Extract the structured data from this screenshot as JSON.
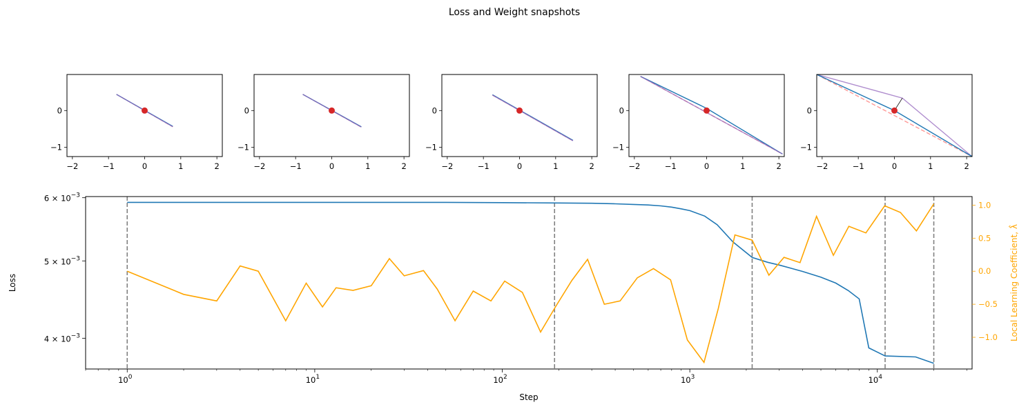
{
  "figure": {
    "suptitle": "Loss and Weight snapshots"
  },
  "colors": {
    "loss": "#1f77b4",
    "llc": "#ffa500",
    "marker": "#d62728",
    "vline": "#808080",
    "snapshot_red": "#ff9896",
    "snapshot_blue": "#1f77b4",
    "snapshot_purple": "#9467bd"
  },
  "chart_data": [
    {
      "type": "scatter",
      "name": "snapshot-1",
      "xlim": [
        -2.15,
        2.15
      ],
      "ylim": [
        -1.25,
        0.98
      ],
      "xticks": [
        -2,
        -1,
        0,
        1,
        2
      ],
      "xtick_labels": [
        "−2",
        "−1",
        "0",
        "1",
        "2"
      ],
      "yticks": [
        0,
        -1
      ],
      "ytick_labels": [
        "0",
        "−1"
      ],
      "lines": [
        {
          "color": "red",
          "dash": true,
          "points": [
            [
              -0.78,
              0.44
            ],
            [
              0.78,
              -0.44
            ]
          ]
        },
        {
          "color": "blue",
          "points": [
            [
              -0.78,
              0.44
            ],
            [
              0.78,
              -0.43
            ]
          ]
        },
        {
          "color": "purple",
          "points": [
            [
              -0.78,
              0.44
            ],
            [
              0.78,
              -0.44
            ]
          ]
        }
      ],
      "point": [
        0,
        0
      ]
    },
    {
      "type": "scatter",
      "name": "snapshot-2",
      "xlim": [
        -2.15,
        2.15
      ],
      "ylim": [
        -1.25,
        0.98
      ],
      "xticks": [
        -2,
        -1,
        0,
        1,
        2
      ],
      "xtick_labels": [
        "−2",
        "−1",
        "0",
        "1",
        "2"
      ],
      "yticks": [
        0,
        -1
      ],
      "ytick_labels": [
        "0",
        "−1"
      ],
      "lines": [
        {
          "color": "red",
          "dash": true,
          "points": [
            [
              -0.8,
              0.44
            ],
            [
              0.82,
              -0.45
            ]
          ]
        },
        {
          "color": "blue",
          "points": [
            [
              -0.8,
              0.44
            ],
            [
              0.82,
              -0.44
            ]
          ]
        },
        {
          "color": "purple",
          "points": [
            [
              -0.8,
              0.44
            ],
            [
              0.82,
              -0.45
            ]
          ]
        }
      ],
      "point": [
        0,
        0
      ]
    },
    {
      "type": "scatter",
      "name": "snapshot-3",
      "xlim": [
        -2.15,
        2.15
      ],
      "ylim": [
        -1.25,
        0.98
      ],
      "xticks": [
        -2,
        -1,
        0,
        1,
        2
      ],
      "xtick_labels": [
        "−2",
        "−1",
        "0",
        "1",
        "2"
      ],
      "yticks": [
        0,
        -1
      ],
      "ytick_labels": [
        "0",
        "−1"
      ],
      "lines": [
        {
          "color": "red",
          "dash": true,
          "points": [
            [
              -0.75,
              0.42
            ],
            [
              1.48,
              -0.82
            ]
          ]
        },
        {
          "color": "blue",
          "points": [
            [
              -0.75,
              0.43
            ],
            [
              1.48,
              -0.81
            ]
          ]
        },
        {
          "color": "purple",
          "points": [
            [
              -0.75,
              0.42
            ],
            [
              1.48,
              -0.82
            ]
          ]
        }
      ],
      "point": [
        0,
        0
      ]
    },
    {
      "type": "scatter",
      "name": "snapshot-4",
      "xlim": [
        -2.15,
        2.15
      ],
      "ylim": [
        -1.25,
        0.98
      ],
      "xticks": [
        -2,
        -1,
        0,
        1,
        2
      ],
      "xtick_labels": [
        "−2",
        "−1",
        "0",
        "1",
        "2"
      ],
      "yticks": [
        0,
        -1
      ],
      "ytick_labels": [
        "0",
        "−1"
      ],
      "lines": [
        {
          "color": "red",
          "dash": true,
          "points": [
            [
              -1.83,
              0.93
            ],
            [
              2.1,
              -1.18
            ]
          ]
        },
        {
          "color": "blue",
          "points": [
            [
              -1.83,
              0.93
            ],
            [
              0.0,
              0.06
            ],
            [
              2.1,
              -1.18
            ]
          ]
        },
        {
          "color": "purple",
          "points": [
            [
              -1.83,
              0.93
            ],
            [
              2.1,
              -1.18
            ]
          ]
        },
        {
          "color": "black",
          "points": [
            [
              0.0,
              0.0
            ],
            [
              0.0,
              0.06
            ]
          ]
        }
      ],
      "point": [
        0,
        0
      ]
    },
    {
      "type": "scatter",
      "name": "snapshot-5",
      "xlim": [
        -2.15,
        2.15
      ],
      "ylim": [
        -1.25,
        0.98
      ],
      "xticks": [
        -2,
        -1,
        0,
        1,
        2
      ],
      "xtick_labels": [
        "−2",
        "−1",
        "0",
        "1",
        "2"
      ],
      "yticks": [
        0,
        -1
      ],
      "ytick_labels": [
        "0",
        "−1"
      ],
      "lines": [
        {
          "color": "red",
          "dash": true,
          "points": [
            [
              -2.15,
              0.98
            ],
            [
              2.15,
              -1.25
            ]
          ]
        },
        {
          "color": "purple",
          "points": [
            [
              -2.15,
              0.98
            ],
            [
              0.22,
              0.34
            ],
            [
              2.15,
              -1.25
            ]
          ]
        },
        {
          "color": "blue",
          "points": [
            [
              -2.15,
              0.98
            ],
            [
              0.0,
              0.0
            ],
            [
              2.15,
              -1.25
            ]
          ]
        },
        {
          "color": "black",
          "points": [
            [
              0.0,
              0.0
            ],
            [
              0.22,
              0.34
            ]
          ]
        }
      ],
      "point": [
        0,
        0
      ]
    },
    {
      "type": "line",
      "name": "loss-llc",
      "xlabel": "Step",
      "ylabel_left": "Loss",
      "ylabel_right": "Local Learning Coefficient, λ̂",
      "xscale": "log",
      "xlim": [
        0.6,
        32000
      ],
      "xticks": [
        1,
        10,
        100,
        1000,
        10000
      ],
      "xtick_labels": [
        "10",
        "10",
        "10",
        "10",
        "10"
      ],
      "xtick_exponents": [
        "0",
        "1",
        "2",
        "3",
        "4"
      ],
      "yscale_left": "log",
      "ylim_left": [
        0.00366,
        0.00602
      ],
      "yticks_left": [
        0.004,
        0.005,
        0.006
      ],
      "ytick_labels_left": [
        "4 × 10",
        "5 × 10",
        "6 × 10"
      ],
      "ytick_exponents_left": [
        "−3",
        "−3",
        "−3"
      ],
      "ylim_right": [
        -1.48,
        1.13
      ],
      "yticks_right": [
        1.0,
        0.5,
        0.0,
        -0.5,
        -1.0
      ],
      "ytick_labels_right": [
        "1.0",
        "0.5",
        "0.0",
        "−0.5",
        "−1.0"
      ],
      "vlines": [
        1,
        190,
        2150,
        11000,
        20000
      ],
      "series": [
        {
          "name": "Loss",
          "axis": "left",
          "x": [
            1,
            2,
            5,
            10,
            20,
            50,
            100,
            200,
            300,
            400,
            500,
            600,
            700,
            800,
            900,
            1000,
            1200,
            1400,
            1700,
            2150,
            2600,
            3000,
            4000,
            5000,
            6000,
            7000,
            8000,
            9000,
            11000,
            16000,
            20000
          ],
          "values": [
            0.00592,
            0.00592,
            0.00592,
            0.00592,
            0.00592,
            0.00592,
            0.005915,
            0.00591,
            0.005905,
            0.005895,
            0.005885,
            0.005875,
            0.00586,
            0.00584,
            0.00581,
            0.00578,
            0.00569,
            0.00555,
            0.00528,
            0.00505,
            0.00498,
            0.00494,
            0.00485,
            0.00477,
            0.00469,
            0.00459,
            0.00448,
            0.00389,
            0.0038,
            0.00379,
            0.00372
          ]
        },
        {
          "name": "Local Learning Coefficient",
          "axis": "right",
          "x": [
            1,
            2,
            3,
            4,
            5,
            7,
            9,
            11,
            13,
            16,
            20,
            25,
            30,
            38,
            45,
            56,
            70,
            87,
            103,
            128,
            160,
            192,
            235,
            285,
            350,
            425,
            525,
            640,
            790,
            970,
            1190,
            1420,
            1740,
            2150,
            2640,
            3180,
            3870,
            4740,
            5830,
            7050,
            8690,
            10940,
            13280,
            16160,
            20000
          ],
          "values": [
            0.0,
            -0.35,
            -0.45,
            0.08,
            0.0,
            -0.75,
            -0.18,
            -0.54,
            -0.25,
            -0.29,
            -0.22,
            0.19,
            -0.07,
            0.01,
            -0.27,
            -0.75,
            -0.3,
            -0.45,
            -0.15,
            -0.32,
            -0.92,
            -0.54,
            -0.14,
            0.18,
            -0.5,
            -0.45,
            -0.1,
            0.04,
            -0.13,
            -1.04,
            -1.38,
            -0.56,
            0.55,
            0.47,
            -0.06,
            0.21,
            0.13,
            0.83,
            0.24,
            0.68,
            0.58,
            0.99,
            0.89,
            0.61,
            1.02
          ]
        }
      ]
    }
  ]
}
